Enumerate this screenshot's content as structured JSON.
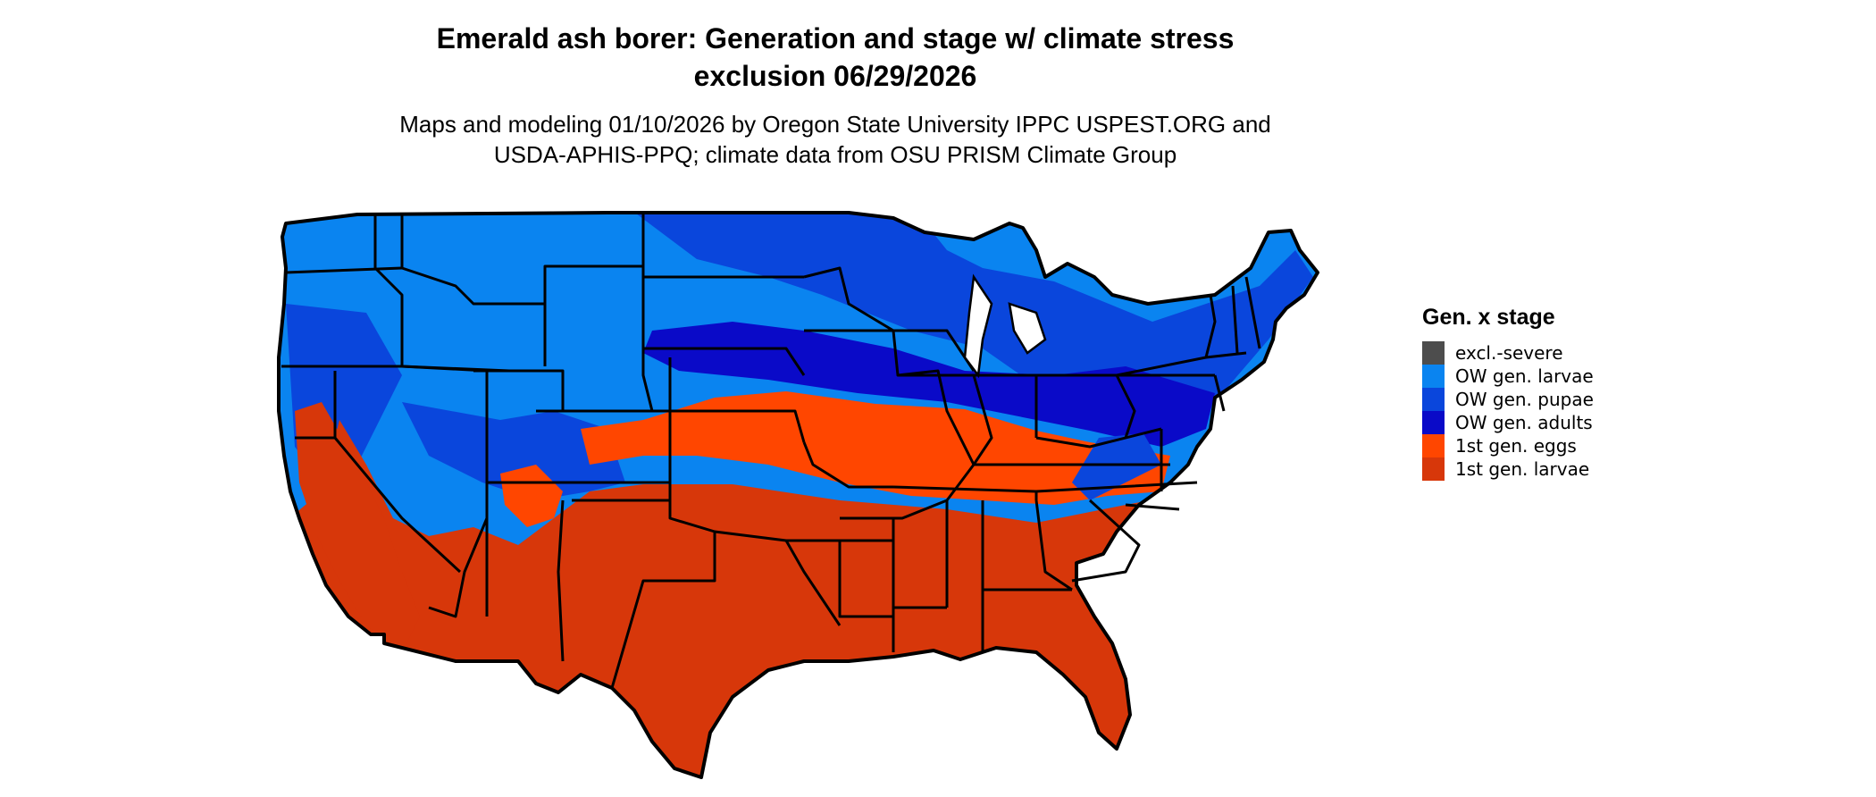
{
  "title": {
    "line1": "Emerald ash borer: Generation and stage w/ climate stress",
    "line2": "exclusion 06/29/2026"
  },
  "subtitle": {
    "line1": "Maps and modeling 01/10/2026 by Oregon State University IPPC USPEST.ORG and",
    "line2": "USDA-APHIS-PPQ; climate data from OSU PRISM Climate Group"
  },
  "legend": {
    "title": "Gen. x stage",
    "items": [
      {
        "label": "excl.-severe",
        "color": "#4d4d4d"
      },
      {
        "label": "OW gen. larvae",
        "color": "#0a84f0"
      },
      {
        "label": "OW gen. pupae",
        "color": "#0a46dc"
      },
      {
        "label": "OW gen. adults",
        "color": "#0a0ac8"
      },
      {
        "label": "1st gen. eggs",
        "color": "#ff4600"
      },
      {
        "label": "1st gen. larvae",
        "color": "#d7370a"
      }
    ]
  },
  "map": {
    "region": "contiguous-united-states",
    "boundary_color": "#000000"
  }
}
